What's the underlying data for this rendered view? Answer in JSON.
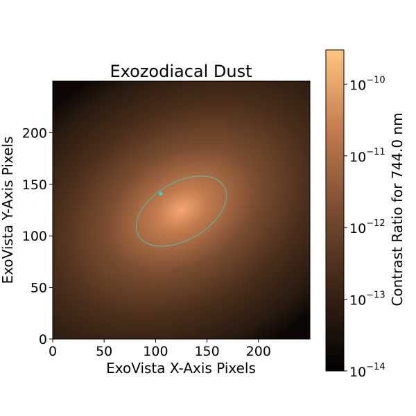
{
  "chart_data": {
    "type": "heatmap",
    "title": "Exozodiacal Dust",
    "xlabel": "ExoVista X-Axis Pixels",
    "ylabel": "ExoVista Y-Axis Pixels",
    "xlim": [
      0,
      250
    ],
    "ylim": [
      0,
      250
    ],
    "x_ticks": [
      0,
      50,
      100,
      150,
      200
    ],
    "y_ticks": [
      0,
      50,
      100,
      150,
      200
    ],
    "colormap": "copper",
    "colorbar": {
      "label": "Contrast Ratio for 744.0 nm",
      "scale": "log",
      "range": [
        1e-14,
        3e-10
      ],
      "ticks": [
        {
          "value": 1e-10,
          "mantissa": "10",
          "exponent": "−10"
        },
        {
          "value": 1e-11,
          "mantissa": "10",
          "exponent": "−11"
        },
        {
          "value": 1e-12,
          "mantissa": "10",
          "exponent": "−12"
        },
        {
          "value": 1e-13,
          "mantissa": "10",
          "exponent": "−13"
        },
        {
          "value": 1e-14,
          "mantissa": "10",
          "exponent": "−14"
        }
      ]
    },
    "dust_peak": {
      "x": 125,
      "y": 125,
      "value": 3e-10
    },
    "orbit": {
      "center": [
        125,
        124
      ],
      "semi_major": 48,
      "semi_minor": 28,
      "angle_deg": 30,
      "color": "#3fc7b0"
    },
    "planet": {
      "x": 105,
      "y": 141,
      "color": "#1de3d6"
    }
  }
}
